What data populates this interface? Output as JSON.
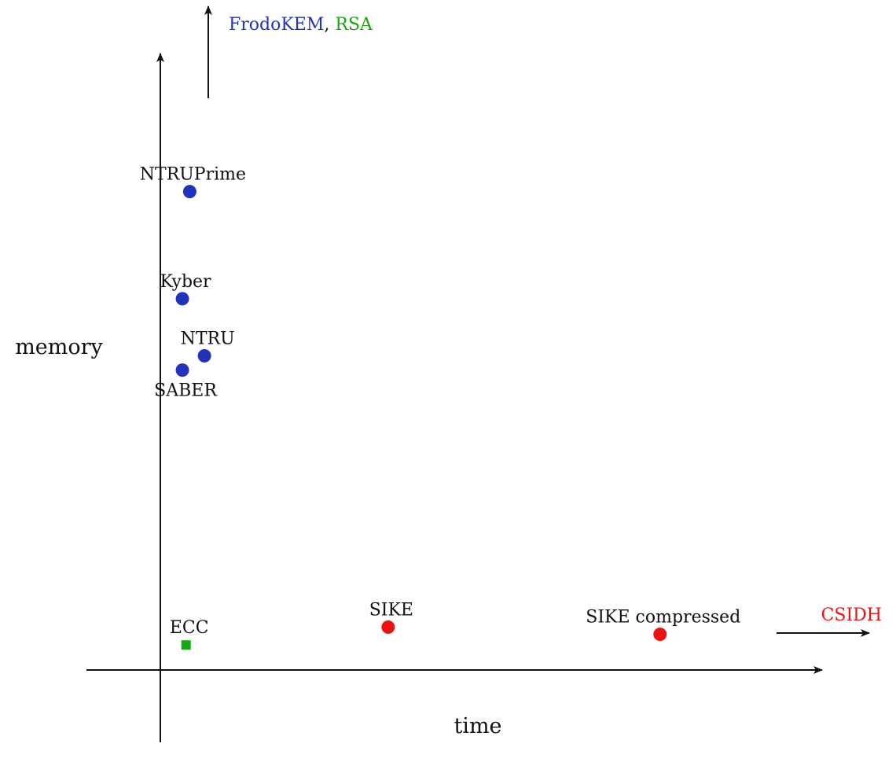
{
  "chart_data": {
    "type": "scatter",
    "xlabel": "time",
    "ylabel": "memory",
    "grid": false,
    "units": "qualitative",
    "points": [
      {
        "label": "NTRUPrime",
        "x": 0.4,
        "y": 6.7,
        "color": "#2233bb",
        "marker": "circle",
        "label_pos": "above"
      },
      {
        "label": "Kyber",
        "x": 0.3,
        "y": 5.2,
        "color": "#2233bb",
        "marker": "circle",
        "label_pos": "above"
      },
      {
        "label": "NTRU",
        "x": 0.6,
        "y": 4.4,
        "color": "#2233bb",
        "marker": "circle",
        "label_pos": "above"
      },
      {
        "label": "SABER",
        "x": 0.3,
        "y": 4.2,
        "color": "#2233bb",
        "marker": "circle",
        "label_pos": "below"
      },
      {
        "label": "ECC",
        "x": 0.35,
        "y": 0.35,
        "color": "#11aa11",
        "marker": "square",
        "label_pos": "above"
      },
      {
        "label": "SIKE",
        "x": 3.1,
        "y": 0.6,
        "color": "#ee1111",
        "marker": "circle",
        "label_pos": "above"
      },
      {
        "label": "SIKE compressed",
        "x": 6.8,
        "y": 0.5,
        "color": "#ee1111",
        "marker": "circle",
        "label_pos": "above"
      }
    ],
    "offscale": [
      {
        "direction": "up",
        "labels": [
          {
            "text": "FrodoKEM",
            "color": "#2233bb"
          },
          {
            "text": ", ",
            "color": "#111111"
          },
          {
            "text": "RSA",
            "color": "#11aa11"
          }
        ]
      },
      {
        "direction": "right",
        "labels": [
          {
            "text": "CSIDH",
            "color": "#ee1111"
          }
        ]
      }
    ]
  }
}
